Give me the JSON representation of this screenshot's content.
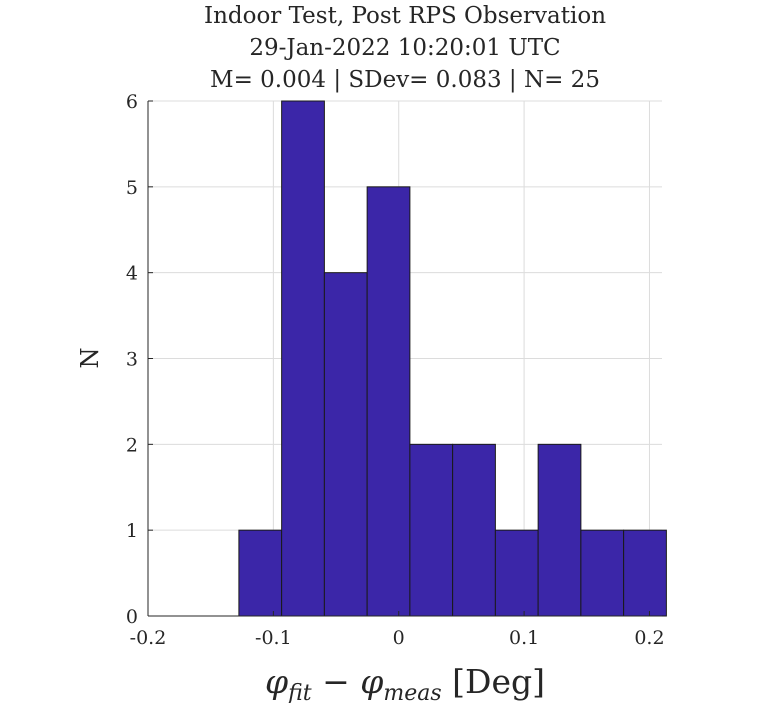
{
  "chart_data": {
    "type": "bar",
    "title": [
      "Indoor Test, Post RPS Observation",
      "29-Jan-2022 10:20:01 UTC",
      "M= 0.004 | SDev= 0.083 | N= 25"
    ],
    "xlabel": {
      "main_before": "φ",
      "sub_before": "fit",
      "minus": " − ",
      "main_after": "φ",
      "sub_after": "meas",
      "unit": " [Deg]"
    },
    "ylabel": "N",
    "xlim": [
      -0.2,
      0.21
    ],
    "ylim": [
      0,
      6
    ],
    "x_ticks": [
      -0.2,
      -0.1,
      0,
      0.1,
      0.2
    ],
    "x_tick_labels": [
      "-0.2",
      "-0.1",
      "0",
      "0.1",
      "0.2"
    ],
    "y_ticks": [
      0,
      1,
      2,
      3,
      4,
      5,
      6
    ],
    "y_tick_labels": [
      "0",
      "1",
      "2",
      "3",
      "4",
      "5",
      "6"
    ],
    "grid": true,
    "bar_color": "#3b26a8",
    "bin_edges": [
      -0.1275,
      -0.0934,
      -0.0593,
      -0.0252,
      0.0089,
      0.043,
      0.0771,
      0.1112,
      0.1453,
      0.1794,
      0.2135
    ],
    "counts": [
      1,
      6,
      4,
      5,
      2,
      2,
      1,
      2,
      1,
      1
    ]
  }
}
